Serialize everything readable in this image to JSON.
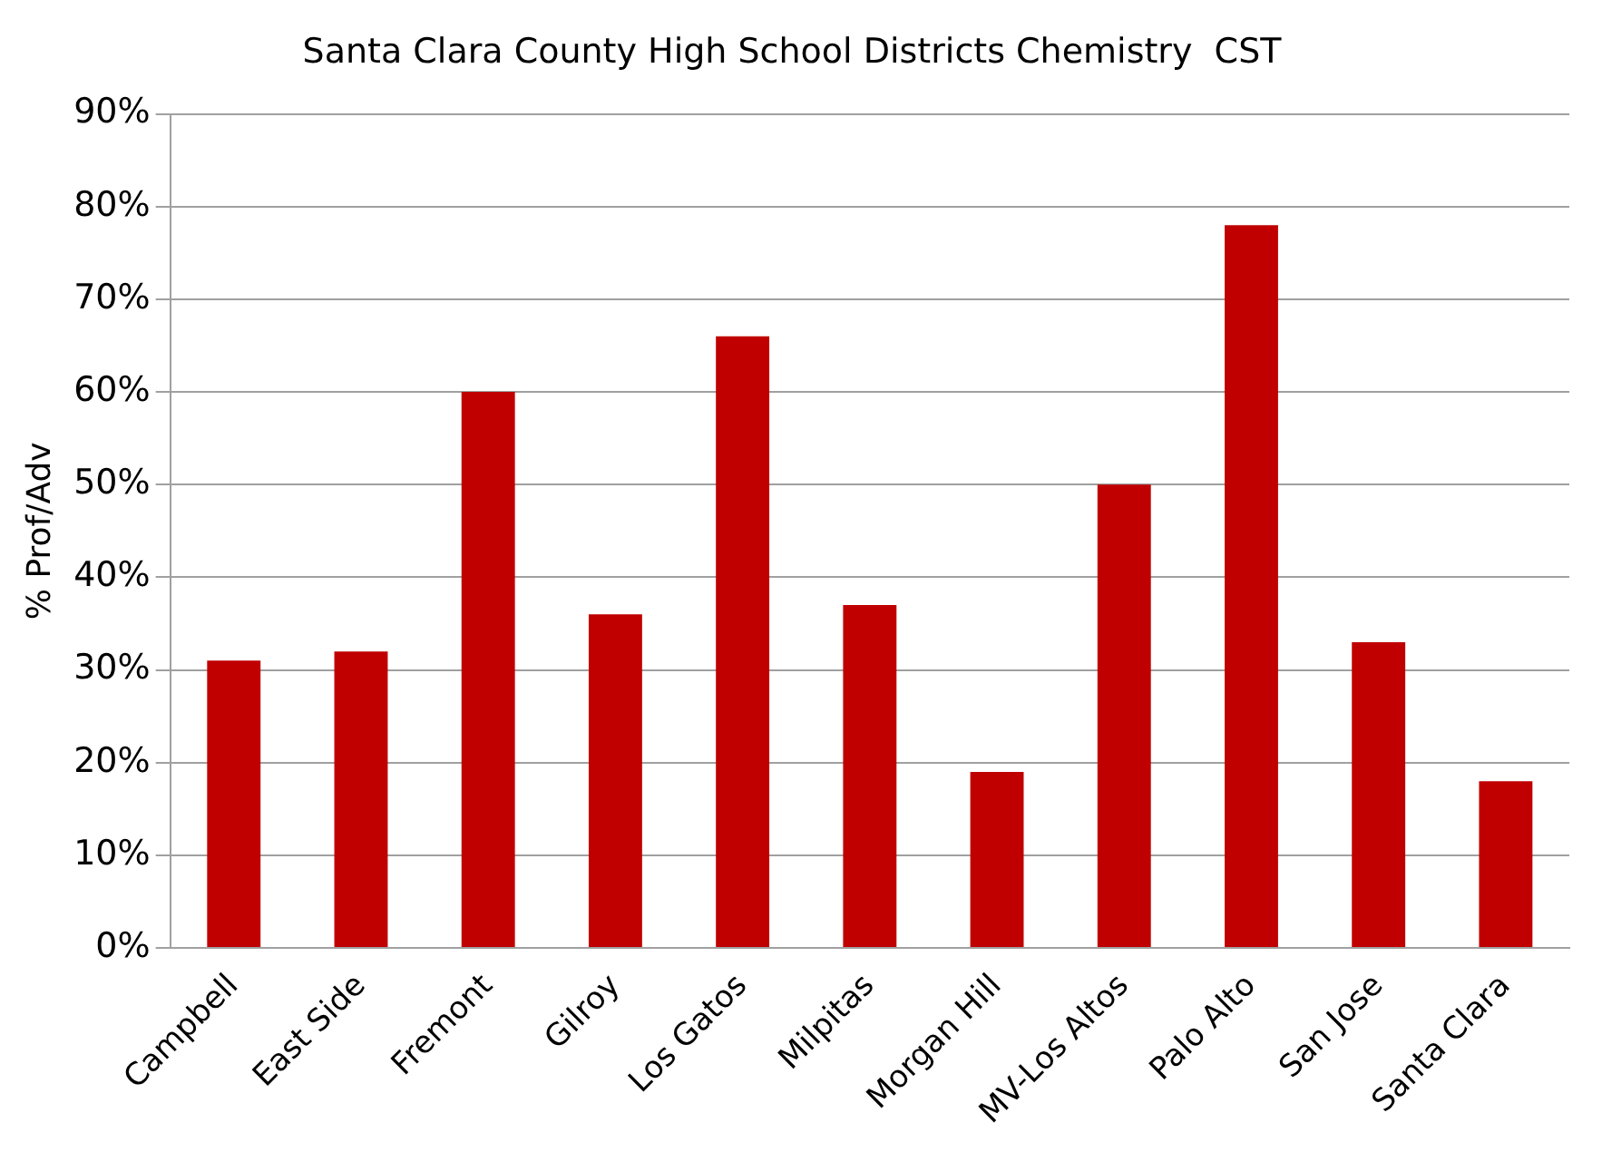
{
  "chart_data": {
    "type": "bar",
    "title": "Santa Clara County High School Districts Chemistry  CST",
    "ylabel": "% Prof/Adv",
    "categories": [
      "Campbell",
      "East Side",
      "Fremont",
      "Gilroy",
      "Los Gatos",
      "Milpitas",
      "Morgan Hill",
      "MV-Los Altos",
      "Palo Alto",
      "San Jose",
      "Santa Clara"
    ],
    "values": [
      31,
      32,
      60,
      36,
      66,
      37,
      19,
      50,
      78,
      33,
      18
    ],
    "color": "#c00000",
    "ylim": [
      0,
      90
    ],
    "yticks": [
      {
        "value": 0,
        "label": "0%"
      },
      {
        "value": 10,
        "label": "10%"
      },
      {
        "value": 20,
        "label": "20%"
      },
      {
        "value": 30,
        "label": "30%"
      },
      {
        "value": 40,
        "label": "40%"
      },
      {
        "value": 50,
        "label": "50%"
      },
      {
        "value": 60,
        "label": "60%"
      },
      {
        "value": 70,
        "label": "70%"
      },
      {
        "value": 80,
        "label": "80%"
      },
      {
        "value": 90,
        "label": "90%"
      }
    ],
    "grid": "y",
    "legend": false
  }
}
